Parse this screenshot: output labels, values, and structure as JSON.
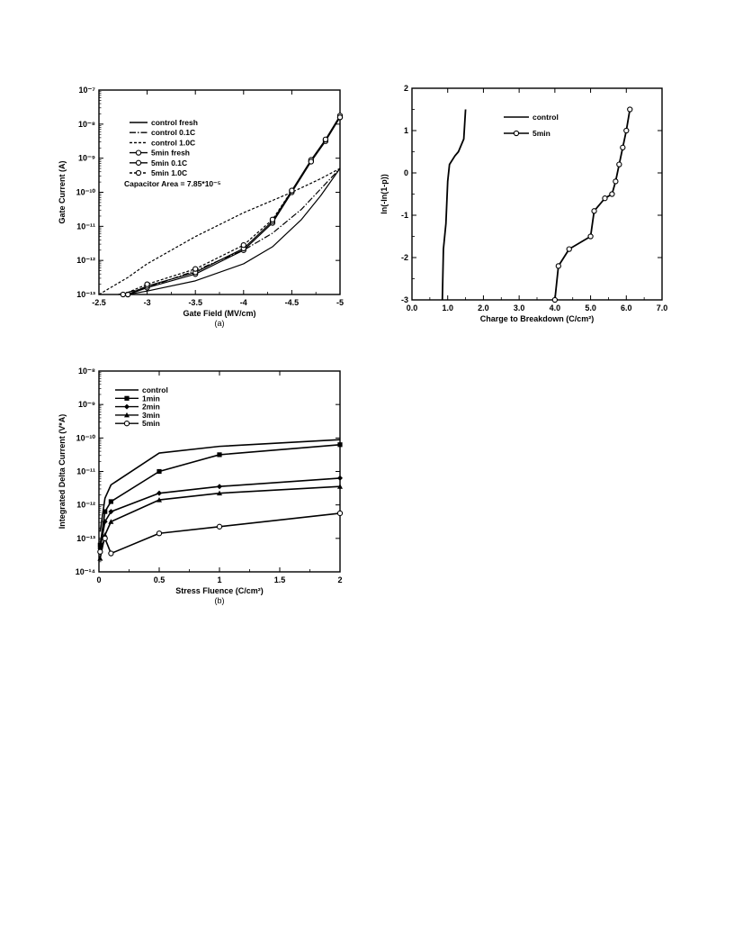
{
  "chart_data": [
    {
      "id": "a",
      "type": "line",
      "caption": "(a)",
      "xlabel": "Gate Field (MV/cm)",
      "ylabel": "Gate Current (A)",
      "xlim": [
        -2.5,
        -5
      ],
      "ylim_log10": [
        -13,
        -7
      ],
      "x_ticks": [
        "-2.5",
        "-3",
        "-3.5",
        "-4",
        "-4.5",
        "-5"
      ],
      "y_ticks": [
        "10⁻¹³",
        "10⁻¹²",
        "10⁻¹¹",
        "10⁻¹⁰",
        "10⁻⁹",
        "10⁻⁸",
        "10⁻⁷"
      ],
      "annotation": "Capacitor Area = 7.85*10⁻⁵",
      "legend_position": "top-left",
      "grid": false,
      "series": [
        {
          "name": "control  fresh",
          "style": "solid",
          "marker": "none",
          "x": [
            -2.8,
            -3.0,
            -3.5,
            -4.0,
            -4.3,
            -4.6,
            -4.8,
            -5.0
          ],
          "log10_y": [
            -13.0,
            -12.9,
            -12.6,
            -12.1,
            -11.6,
            -10.8,
            -10.1,
            -9.3
          ]
        },
        {
          "name": "control 0.1C",
          "style": "dashdot",
          "marker": "none",
          "x": [
            -2.7,
            -3.0,
            -3.5,
            -4.0,
            -4.3,
            -4.6,
            -4.8,
            -5.0
          ],
          "log10_y": [
            -13.0,
            -12.8,
            -12.3,
            -11.7,
            -11.2,
            -10.5,
            -9.9,
            -9.3
          ]
        },
        {
          "name": "control 1.0C",
          "style": "dashed",
          "marker": "none",
          "x": [
            -2.5,
            -2.8,
            -3.0,
            -3.5,
            -4.0,
            -4.5,
            -4.8,
            -5.0
          ],
          "log10_y": [
            -13.0,
            -12.5,
            -12.1,
            -11.3,
            -10.6,
            -10.0,
            -9.6,
            -9.3
          ]
        },
        {
          "name": "5min fresh",
          "style": "solid",
          "marker": "circle",
          "x": [
            -2.8,
            -3.0,
            -3.5,
            -4.0,
            -4.3,
            -4.5,
            -4.7,
            -4.85,
            -5.0
          ],
          "log10_y": [
            -13.0,
            -12.8,
            -12.4,
            -11.7,
            -10.9,
            -10.0,
            -9.1,
            -8.5,
            -7.8
          ]
        },
        {
          "name": "5min 0.1C",
          "style": "solid",
          "marker": "circle",
          "x": [
            -2.8,
            -3.0,
            -3.5,
            -4.0,
            -4.3,
            -4.5,
            -4.7,
            -4.85,
            -5.0
          ],
          "log10_y": [
            -13.0,
            -12.75,
            -12.35,
            -11.65,
            -10.85,
            -9.95,
            -9.05,
            -8.45,
            -7.75
          ]
        },
        {
          "name": "5min 1.0C",
          "style": "dashed",
          "marker": "circle",
          "x": [
            -2.75,
            -3.0,
            -3.5,
            -4.0,
            -4.3,
            -4.5,
            -4.7,
            -4.85,
            -5.0
          ],
          "log10_y": [
            -13.0,
            -12.7,
            -12.25,
            -11.55,
            -10.8,
            -9.95,
            -9.1,
            -8.45,
            -7.8
          ]
        }
      ]
    },
    {
      "id": "c",
      "type": "line",
      "caption": "",
      "xlabel": "Charge to Breakdown (C/cm²)",
      "ylabel": "ln(-ln(1-p))",
      "xlim": [
        0,
        7
      ],
      "ylim": [
        -3,
        2
      ],
      "x_ticks": [
        "0.0",
        "1.0",
        "2.0",
        "3.0",
        "4.0",
        "5.0",
        "6.0",
        "7.0"
      ],
      "y_ticks": [
        "-3",
        "-2",
        "-1",
        "0",
        "1",
        "2"
      ],
      "legend_position": "top-center",
      "grid": false,
      "series": [
        {
          "name": "control",
          "style": "solid",
          "marker": "none",
          "x": [
            0.85,
            0.88,
            0.95,
            1.0,
            1.05,
            1.2,
            1.3,
            1.45,
            1.5
          ],
          "y": [
            -3.0,
            -1.8,
            -1.2,
            -0.2,
            0.2,
            0.4,
            0.5,
            0.8,
            1.5
          ]
        },
        {
          "name": "5min",
          "style": "solid",
          "marker": "circle",
          "x": [
            4.0,
            4.1,
            4.4,
            5.0,
            5.1,
            5.4,
            5.6,
            5.7,
            5.8,
            5.9,
            6.0,
            6.1
          ],
          "y": [
            -3.0,
            -2.2,
            -1.8,
            -1.5,
            -0.9,
            -0.6,
            -0.5,
            -0.2,
            0.2,
            0.6,
            1.0,
            1.5
          ]
        }
      ]
    },
    {
      "id": "b",
      "type": "line",
      "caption": "(b)",
      "xlabel": "Stress Fluence (C/cm²)",
      "ylabel": "Integrated Delta Current (V*A)",
      "xlim": [
        0,
        2
      ],
      "ylim_log10": [
        -14,
        -8
      ],
      "x_ticks": [
        "0",
        "0.5",
        "1",
        "1.5",
        "2"
      ],
      "y_ticks": [
        "10⁻¹⁴",
        "10⁻¹³",
        "10⁻¹²",
        "10⁻¹¹",
        "10⁻¹⁰",
        "10⁻⁹",
        "10⁻⁸"
      ],
      "legend_position": "top-left",
      "grid": false,
      "series": [
        {
          "name": "control",
          "style": "solid",
          "marker": "none",
          "x": [
            0.01,
            0.05,
            0.1,
            0.5,
            1.0,
            2.0
          ],
          "log10_y": [
            -12.8,
            -11.8,
            -11.4,
            -10.45,
            -10.25,
            -10.05
          ]
        },
        {
          "name": "1min",
          "style": "solid",
          "marker": "square",
          "x": [
            0.01,
            0.05,
            0.1,
            0.5,
            1.0,
            2.0
          ],
          "log10_y": [
            -13.2,
            -12.2,
            -11.9,
            -11.0,
            -10.5,
            -10.2
          ]
        },
        {
          "name": "2min",
          "style": "solid",
          "marker": "diamond",
          "x": [
            0.01,
            0.05,
            0.1,
            0.5,
            1.0,
            2.0
          ],
          "log10_y": [
            -13.3,
            -12.5,
            -12.2,
            -11.65,
            -11.45,
            -11.2
          ]
        },
        {
          "name": "3min",
          "style": "solid",
          "marker": "triangle",
          "x": [
            0.01,
            0.05,
            0.1,
            0.5,
            1.0,
            2.0
          ],
          "log10_y": [
            -13.6,
            -12.9,
            -12.5,
            -11.85,
            -11.65,
            -11.45
          ]
        },
        {
          "name": "5min",
          "style": "solid",
          "marker": "circle",
          "x": [
            0.01,
            0.05,
            0.1,
            0.5,
            1.0,
            2.0
          ],
          "log10_y": [
            -13.4,
            -13.0,
            -13.45,
            -12.85,
            -12.65,
            -12.25
          ]
        }
      ]
    }
  ]
}
